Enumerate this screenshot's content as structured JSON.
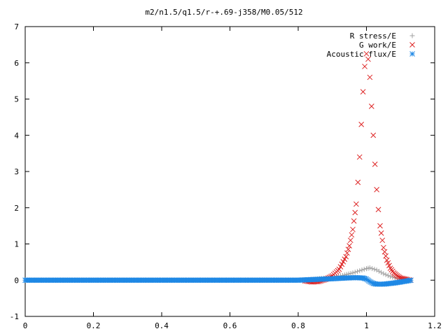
{
  "chart_data": {
    "type": "scatter",
    "title": "m2/n1.5/q1.5/r-+.69-j358/M0.05/512",
    "xlabel": "",
    "ylabel": "",
    "xlim": [
      0,
      1.2
    ],
    "ylim": [
      -1,
      7
    ],
    "xticks": [
      "0",
      "0.2",
      "0.4",
      "0.6",
      "0.8",
      "1",
      "1.2"
    ],
    "yticks": [
      "-1",
      "0",
      "1",
      "2",
      "3",
      "4",
      "5",
      "6",
      "7"
    ],
    "grid": false,
    "legend_position": "top-right",
    "series": [
      {
        "name": "R stress/E",
        "color": "#a0a0a0",
        "marker": "plus",
        "x": [
          0.0,
          0.1,
          0.2,
          0.3,
          0.4,
          0.5,
          0.6,
          0.7,
          0.8,
          0.85,
          0.9,
          0.93,
          0.96,
          0.98,
          1.0,
          1.01,
          1.03,
          1.05,
          1.07,
          1.09,
          1.11,
          1.13
        ],
        "y": [
          0.0,
          0.0,
          0.0,
          0.0,
          0.0,
          0.0,
          0.0,
          0.0,
          0.0,
          0.03,
          0.08,
          0.13,
          0.2,
          0.26,
          0.32,
          0.34,
          0.28,
          0.18,
          0.1,
          0.05,
          0.02,
          0.0
        ]
      },
      {
        "name": "G work/E",
        "color": "#dd2222",
        "marker": "cross",
        "x": [
          0.82,
          0.84,
          0.86,
          0.88,
          0.9,
          0.92,
          0.94,
          0.95,
          0.96,
          0.97,
          0.975,
          0.98,
          0.985,
          0.99,
          0.995,
          1.0,
          1.005,
          1.01,
          1.015,
          1.02,
          1.025,
          1.03,
          1.035,
          1.04,
          1.05,
          1.06,
          1.07,
          1.08,
          1.09,
          1.1,
          1.12,
          1.13
        ],
        "y": [
          -0.02,
          -0.05,
          -0.04,
          0.02,
          0.12,
          0.3,
          0.65,
          0.95,
          1.4,
          2.1,
          2.7,
          3.4,
          4.3,
          5.2,
          5.9,
          6.25,
          6.1,
          5.6,
          4.8,
          4.0,
          3.2,
          2.5,
          1.95,
          1.5,
          0.9,
          0.55,
          0.33,
          0.2,
          0.12,
          0.06,
          0.02,
          0.0
        ]
      },
      {
        "name": "Acoustic flux/E",
        "color": "#1e88e5",
        "marker": "star",
        "x": [
          0.0,
          0.1,
          0.2,
          0.3,
          0.4,
          0.5,
          0.6,
          0.7,
          0.8,
          0.85,
          0.9,
          0.94,
          0.97,
          0.99,
          1.0,
          1.01,
          1.02,
          1.03,
          1.05,
          1.08,
          1.1,
          1.12,
          1.13
        ],
        "y": [
          0.0,
          0.0,
          0.0,
          0.0,
          0.0,
          0.0,
          0.0,
          0.0,
          0.0,
          0.02,
          0.04,
          0.06,
          0.07,
          0.06,
          0.03,
          -0.04,
          -0.09,
          -0.11,
          -0.11,
          -0.08,
          -0.05,
          -0.02,
          0.0
        ]
      }
    ]
  }
}
